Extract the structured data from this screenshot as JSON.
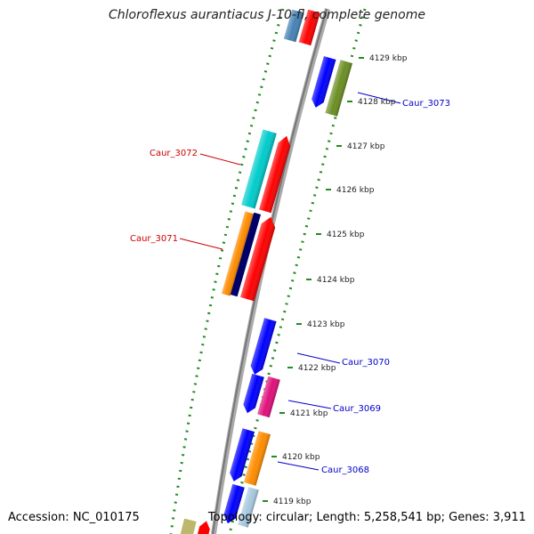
{
  "title": "Chloroflexus aurantiacus J-10-fl, complete genome",
  "footer": {
    "accession": "Accession: NC_010175",
    "summary": "Topology: circular; Length: 5,258,541 bp; Genes: 3,911"
  },
  "ticks": [
    "4119 kbp",
    "4120 kbp",
    "4121 kbp",
    "4122 kbp",
    "4123 kbp",
    "4124 kbp",
    "4125 kbp",
    "4126 kbp",
    "4127 kbp",
    "4128 kbp",
    "4129 kbp"
  ],
  "genes": [
    {
      "name": "Caur_3073",
      "color": "#0000cc"
    },
    {
      "name": "Caur_3072",
      "color": "#cc0000"
    },
    {
      "name": "Caur_3071",
      "color": "#cc0000"
    },
    {
      "name": "Caur_3070",
      "color": "#0000cc"
    },
    {
      "name": "Caur_3069",
      "color": "#0000cc"
    },
    {
      "name": "Caur_3068",
      "color": "#0000cc"
    }
  ],
  "colors": {
    "backbone": "#888888",
    "tick_track": "#228b22",
    "blue": "#0000ff",
    "red": "#ff0000",
    "cyan": "#00cccc",
    "orange": "#ff8c00",
    "navy": "#000066",
    "olive": "#6b8e23",
    "magenta": "#e0107a",
    "steel": "#4682b4",
    "khaki": "#bdb76b"
  }
}
